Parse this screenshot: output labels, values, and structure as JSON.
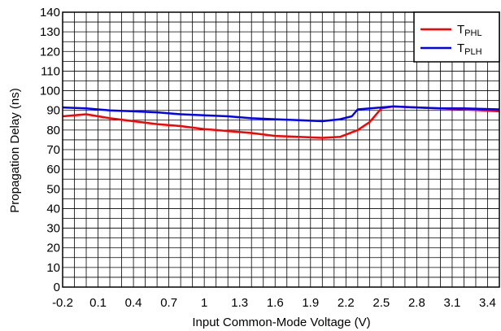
{
  "chart_data": {
    "type": "line",
    "title": "",
    "xlabel": "Input Common-Mode Voltage (V)",
    "ylabel": "Propagation Delay (ns)",
    "xlim": [
      -0.2,
      3.5
    ],
    "ylim": [
      0,
      140
    ],
    "x_tick_labels": [
      "-0.2",
      "0.1",
      "0.4",
      "0.7",
      "1",
      "1.3",
      "1.6",
      "1.9",
      "2.2",
      "2.5",
      "2.8",
      "3.1",
      "3.4"
    ],
    "y_tick_labels": [
      "0",
      "10",
      "20",
      "30",
      "40",
      "50",
      "60",
      "70",
      "80",
      "90",
      "100",
      "110",
      "120",
      "130",
      "140"
    ],
    "x_minor_step": 0.1,
    "y_minor_step": 5,
    "grid": true,
    "legend_position": "top-right",
    "series": [
      {
        "name": "TPHL",
        "label_main": "T",
        "label_sub": "PHL",
        "color": "#ff0000",
        "points": [
          [
            -0.2,
            87
          ],
          [
            0.0,
            88
          ],
          [
            0.2,
            86
          ],
          [
            0.4,
            84.5
          ],
          [
            0.6,
            83
          ],
          [
            0.8,
            82
          ],
          [
            1.0,
            80.5
          ],
          [
            1.2,
            79.5
          ],
          [
            1.4,
            78.5
          ],
          [
            1.6,
            77
          ],
          [
            1.8,
            76.5
          ],
          [
            2.0,
            76
          ],
          [
            2.15,
            76.5
          ],
          [
            2.3,
            80
          ],
          [
            2.4,
            84
          ],
          [
            2.5,
            91
          ],
          [
            2.6,
            92
          ],
          [
            2.8,
            91.5
          ],
          [
            3.0,
            91
          ],
          [
            3.2,
            90.5
          ],
          [
            3.5,
            89.5
          ]
        ]
      },
      {
        "name": "TPLH",
        "label_main": "T",
        "label_sub": "PLH",
        "color": "#0000ff",
        "points": [
          [
            -0.2,
            91.5
          ],
          [
            0.0,
            91
          ],
          [
            0.2,
            90
          ],
          [
            0.4,
            89.5
          ],
          [
            0.6,
            89
          ],
          [
            0.8,
            88
          ],
          [
            1.0,
            87.5
          ],
          [
            1.2,
            87
          ],
          [
            1.4,
            86
          ],
          [
            1.6,
            85.5
          ],
          [
            1.8,
            85
          ],
          [
            2.0,
            84.5
          ],
          [
            2.15,
            85.5
          ],
          [
            2.25,
            87
          ],
          [
            2.3,
            90.5
          ],
          [
            2.5,
            91.5
          ],
          [
            2.6,
            92
          ],
          [
            2.8,
            91.5
          ],
          [
            3.0,
            91
          ],
          [
            3.2,
            91
          ],
          [
            3.5,
            90.5
          ]
        ]
      }
    ]
  }
}
